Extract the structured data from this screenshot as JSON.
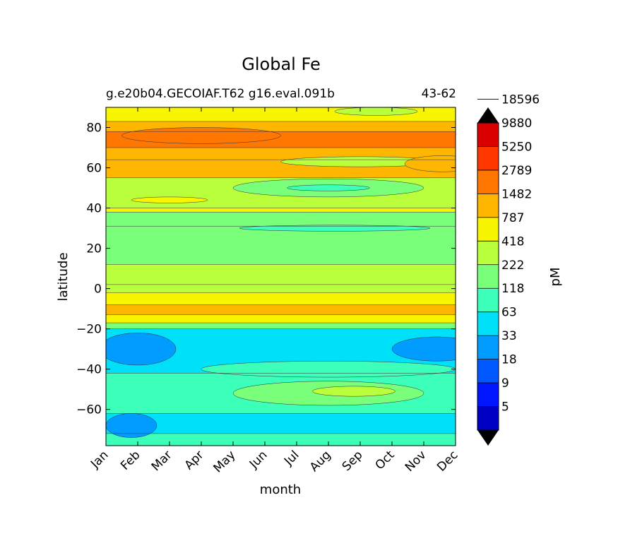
{
  "chart_data": {
    "type": "heatmap",
    "title": "Global Fe",
    "subtitle_left": "g.e20b04.GECOIAF.T62 g16.eval.091b",
    "subtitle_right": "43-62",
    "xlabel": "month",
    "ylabel": "latitude",
    "x_categories": [
      "Jan",
      "Feb",
      "Mar",
      "Apr",
      "May",
      "Jun",
      "Jul",
      "Aug",
      "Sep",
      "Oct",
      "Nov",
      "Dec"
    ],
    "y_ticks": [
      "80",
      "60",
      "40",
      "20",
      "0",
      "−20",
      "−40",
      "−60"
    ],
    "ylim": [
      -78,
      90
    ],
    "colorbar": {
      "label": "pM",
      "levels": [
        "5",
        "9",
        "18",
        "33",
        "63",
        "118",
        "222",
        "418",
        "787",
        "1482",
        "2789",
        "5250",
        "9880",
        "18596"
      ],
      "colors": [
        "#00007f",
        "#0000c4",
        "#0016ff",
        "#0058ff",
        "#009cff",
        "#00e0f8",
        "#3cffba",
        "#7aff7a",
        "#baff3c",
        "#f8f500",
        "#ffb600",
        "#ff7600",
        "#ff3800",
        "#da0000",
        "#7f0000"
      ]
    },
    "bands": [
      {
        "lat": [
          -78,
          -72
        ],
        "color_index": 6
      },
      {
        "lat": [
          -72,
          -62
        ],
        "color_index": 5
      },
      {
        "lat": [
          -62,
          -42
        ],
        "color_index": 6
      },
      {
        "lat": [
          -42,
          -20
        ],
        "color_index": 5
      },
      {
        "lat": [
          -20,
          -17
        ],
        "color_index": 7
      },
      {
        "lat": [
          -17,
          -13
        ],
        "color_index": 9
      },
      {
        "lat": [
          -13,
          -8
        ],
        "color_index": 10
      },
      {
        "lat": [
          -8,
          -2
        ],
        "color_index": 9
      },
      {
        "lat": [
          -2,
          2
        ],
        "color_index": 8
      },
      {
        "lat": [
          2,
          12
        ],
        "color_index": 8
      },
      {
        "lat": [
          12,
          31
        ],
        "color_index": 7
      },
      {
        "lat": [
          31,
          38
        ],
        "color_index": 7
      },
      {
        "lat": [
          38,
          40
        ],
        "color_index": 9
      },
      {
        "lat": [
          40,
          55
        ],
        "color_index": 8
      },
      {
        "lat": [
          55,
          64
        ],
        "color_index": 10
      },
      {
        "lat": [
          64,
          70
        ],
        "color_index": 10
      },
      {
        "lat": [
          70,
          78
        ],
        "color_index": 11
      },
      {
        "lat": [
          78,
          83
        ],
        "color_index": 10
      },
      {
        "lat": [
          83,
          90
        ],
        "color_index": 9
      }
    ],
    "patches": [
      {
        "month_center": 1.0,
        "month_width": 2.4,
        "lat_center": -30,
        "lat_height": 16,
        "color_index": 4
      },
      {
        "month_center": 10.4,
        "month_width": 2.8,
        "lat_center": -30,
        "lat_height": 12,
        "color_index": 4
      },
      {
        "month_center": 0.8,
        "month_width": 1.6,
        "lat_center": -68,
        "lat_height": 12,
        "color_index": 4
      },
      {
        "month_center": 7.0,
        "month_width": 6.0,
        "lat_center": -52,
        "lat_height": 12,
        "color_index": 7
      },
      {
        "month_center": 7.8,
        "month_width": 2.6,
        "lat_center": -51,
        "lat_height": 5,
        "color_index": 8
      },
      {
        "month_center": 7.0,
        "month_width": 8.0,
        "lat_center": -40,
        "lat_height": 8,
        "color_index": 6
      },
      {
        "month_center": 7.0,
        "month_width": 6.0,
        "lat_center": 50,
        "lat_height": 9,
        "color_index": 7
      },
      {
        "month_center": 7.0,
        "month_width": 2.6,
        "lat_center": 50,
        "lat_height": 3,
        "color_index": 6
      },
      {
        "month_center": 7.2,
        "month_width": 6.0,
        "lat_center": 30,
        "lat_height": 3,
        "color_index": 6
      },
      {
        "month_center": 2.0,
        "month_width": 2.4,
        "lat_center": 44,
        "lat_height": 3,
        "color_index": 9
      },
      {
        "month_center": 8.0,
        "month_width": 5.0,
        "lat_center": 63,
        "lat_height": 5,
        "color_index": 8
      },
      {
        "month_center": 8.5,
        "month_width": 2.6,
        "lat_center": 88,
        "lat_height": 4,
        "color_index": 8
      },
      {
        "month_center": 3.0,
        "month_width": 5.0,
        "lat_center": 76,
        "lat_height": 8,
        "color_index": 11
      },
      {
        "month_center": 10.6,
        "month_width": 2.4,
        "lat_center": 62,
        "lat_height": 8,
        "color_index": 10
      }
    ]
  }
}
